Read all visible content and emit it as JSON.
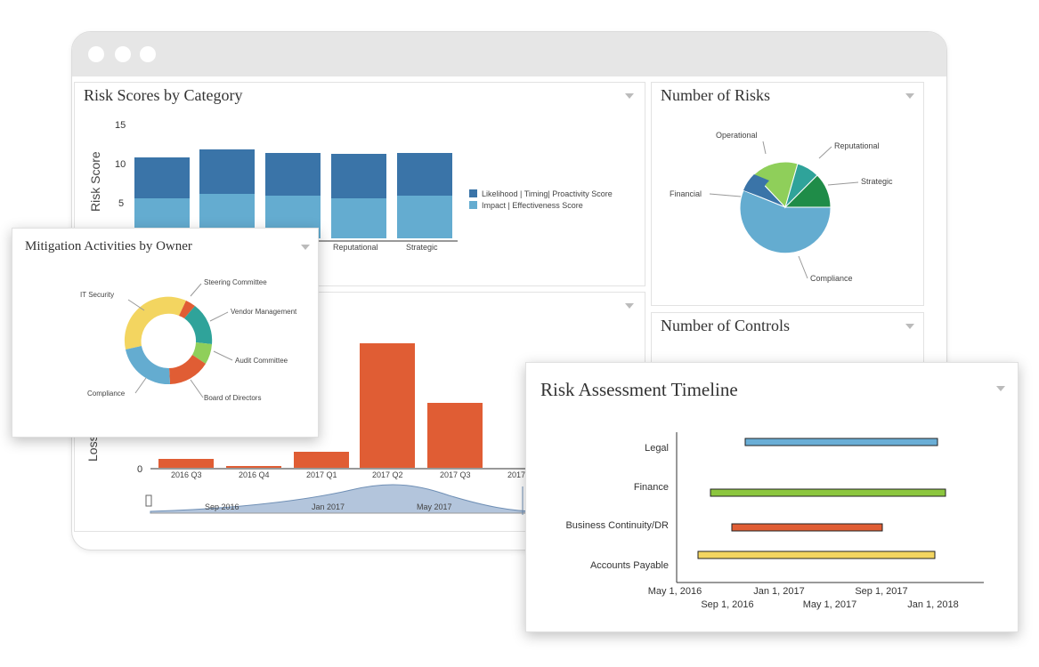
{
  "window": {
    "title_dots": [
      "dot-1",
      "dot-2",
      "dot-3"
    ]
  },
  "risk_scores": {
    "title": "Risk Scores by Category",
    "ylabel": "Risk Score",
    "yticks": [
      "15",
      "10",
      "5"
    ],
    "categories": [
      "Reputational",
      "Strategic"
    ],
    "legend": [
      "Likelihood | Timing| Proactivity Score",
      "Impact | Effectiveness Score"
    ],
    "colors": {
      "dark": "#3a74a8",
      "light": "#64acd0"
    }
  },
  "number_of_risks": {
    "title": "Number of Risks",
    "labels": {
      "operational": "Operational",
      "reputational": "Reputational",
      "strategic": "Strategic",
      "financial": "Financial",
      "compliance": "Compliance"
    }
  },
  "number_of_controls": {
    "title": "Number of Controls"
  },
  "loss_chart": {
    "ylabel": "Loss",
    "ytick": "0",
    "categories": [
      "2016 Q3",
      "2016 Q4",
      "2017 Q1",
      "2017 Q2",
      "2017 Q3",
      "2017"
    ],
    "navigator_labels": [
      "Sep 2016",
      "Jan 2017",
      "May 2017"
    ],
    "color": "#e05d34"
  },
  "mitigation": {
    "title": "Mitigation Activities by Owner",
    "labels": {
      "it_security": "IT Security",
      "steering": "Steering Committee",
      "vendor": "Vendor Management",
      "audit": "Audit Committee",
      "board": "Board of Directors",
      "compliance": "Compliance"
    }
  },
  "timeline": {
    "title": "Risk Assessment Timeline",
    "rows": [
      "Legal",
      "Finance",
      "Business Continuity/DR",
      "Accounts Payable"
    ],
    "x_upper": [
      "May 1, 2016",
      "Jan 1, 2017",
      "Sep 1, 2017"
    ],
    "x_lower": [
      "Sep 1, 2016",
      "May 1, 2017",
      "Jan 1, 2018"
    ],
    "colors": {
      "legal": "#6aaed6",
      "finance": "#8cc63e",
      "bc": "#e05d34",
      "ap": "#f3d560"
    }
  }
}
